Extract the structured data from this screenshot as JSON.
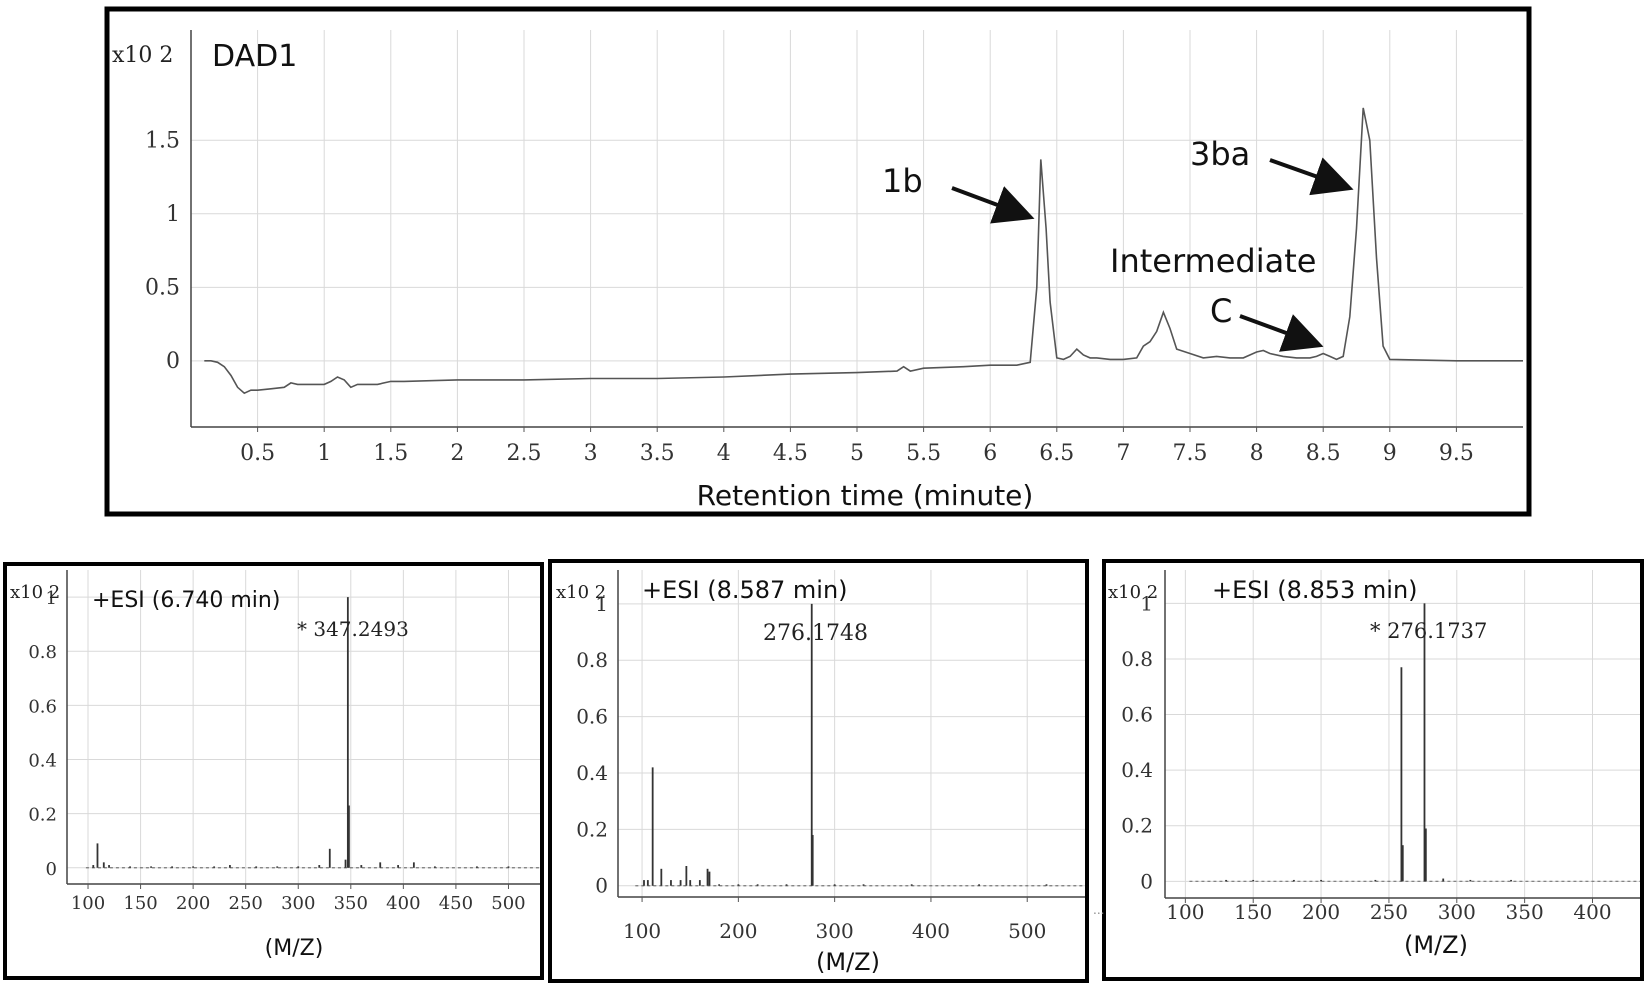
{
  "chart_data": [
    {
      "type": "line",
      "title": "DAD1",
      "xlabel": "Retention time (minute)",
      "ylabel": "",
      "y_multiplier": "x10 2",
      "xlim": [
        0,
        10
      ],
      "ylim": [
        -0.45,
        2.25
      ],
      "xticks": [
        "0.5",
        "1",
        "1.5",
        "2",
        "2.5",
        "3",
        "3.5",
        "4",
        "4.5",
        "5",
        "5.5",
        "6",
        "6.5",
        "7",
        "7.5",
        "8",
        "8.5",
        "9",
        "9.5"
      ],
      "yticks": [
        "0",
        "0.5",
        "1",
        "1.5"
      ],
      "grid": true,
      "series": [
        {
          "x": [
            0.1,
            0.15,
            0.2,
            0.25,
            0.3,
            0.35,
            0.4,
            0.45,
            0.5,
            0.6,
            0.7,
            0.75,
            0.8,
            0.9,
            1.0,
            1.05,
            1.1,
            1.15,
            1.2,
            1.25,
            1.3,
            1.4,
            1.5,
            1.6,
            2.0,
            2.5,
            3.0,
            3.5,
            4.0,
            4.5,
            5.0,
            5.3,
            5.35,
            5.4,
            5.5,
            5.8,
            6.0,
            6.2,
            6.3,
            6.35,
            6.38,
            6.42,
            6.45,
            6.5,
            6.55,
            6.6,
            6.65,
            6.7,
            6.75,
            6.8,
            6.9,
            7.0,
            7.1,
            7.15,
            7.2,
            7.25,
            7.3,
            7.35,
            7.4,
            7.5,
            7.6,
            7.7,
            7.8,
            7.9,
            8.0,
            8.05,
            8.1,
            8.2,
            8.3,
            8.4,
            8.45,
            8.5,
            8.55,
            8.6,
            8.65,
            8.7,
            8.75,
            8.8,
            8.85,
            8.9,
            8.95,
            9.0,
            9.5,
            10.0
          ],
          "y": [
            0.0,
            0.0,
            -0.01,
            -0.04,
            -0.1,
            -0.18,
            -0.22,
            -0.2,
            -0.2,
            -0.19,
            -0.18,
            -0.15,
            -0.16,
            -0.16,
            -0.16,
            -0.14,
            -0.11,
            -0.13,
            -0.18,
            -0.16,
            -0.16,
            -0.16,
            -0.14,
            -0.14,
            -0.13,
            -0.13,
            -0.12,
            -0.12,
            -0.11,
            -0.09,
            -0.08,
            -0.07,
            -0.04,
            -0.07,
            -0.05,
            -0.04,
            -0.03,
            -0.03,
            -0.01,
            0.5,
            1.37,
            0.9,
            0.4,
            0.02,
            0.01,
            0.03,
            0.08,
            0.04,
            0.02,
            0.02,
            0.01,
            0.01,
            0.02,
            0.1,
            0.13,
            0.2,
            0.33,
            0.22,
            0.08,
            0.05,
            0.02,
            0.03,
            0.02,
            0.02,
            0.06,
            0.07,
            0.05,
            0.03,
            0.02,
            0.02,
            0.03,
            0.05,
            0.03,
            0.01,
            0.03,
            0.3,
            0.9,
            1.72,
            1.5,
            0.7,
            0.1,
            0.01,
            0.0,
            0.0
          ]
        }
      ],
      "annotations": [
        {
          "text": "1b",
          "x": 6.3,
          "y": 1.37
        },
        {
          "text": "3ba",
          "x": 8.75,
          "y": 1.72
        },
        {
          "text": "Intermediate",
          "x": 8.4,
          "y": 0.05
        },
        {
          "text": "C",
          "x": 8.4,
          "y": 0.05
        }
      ]
    },
    {
      "type": "bar",
      "title": "+ESI (6.740 min)",
      "xlabel": "(M/Z)",
      "ylabel": "",
      "y_multiplier": "x10 2",
      "xlim": [
        80,
        530
      ],
      "ylim": [
        -0.06,
        1.1
      ],
      "xticks": [
        "100",
        "150",
        "200",
        "250",
        "300",
        "350",
        "400",
        "450",
        "500"
      ],
      "yticks": [
        "0",
        "0.2",
        "0.4",
        "0.6",
        "0.8",
        "1"
      ],
      "grid": true,
      "peak_label": "* 347.2493",
      "x": [
        105,
        109,
        115,
        120,
        140,
        160,
        180,
        200,
        220,
        235,
        260,
        280,
        300,
        320,
        330,
        345,
        347.2,
        348.2,
        360,
        378,
        395,
        410,
        430,
        470,
        500
      ],
      "values": [
        0.01,
        0.09,
        0.02,
        0.01,
        0.005,
        0.005,
        0.005,
        0.005,
        0.005,
        0.01,
        0.005,
        0.005,
        0.005,
        0.01,
        0.07,
        0.03,
        1.0,
        0.23,
        0.01,
        0.02,
        0.01,
        0.02,
        0.005,
        0.005,
        0.005
      ]
    },
    {
      "type": "bar",
      "title": "+ESI (8.587 min)",
      "xlabel": "(M/Z)",
      "ylabel": "",
      "y_multiplier": "x10 2",
      "xlim": [
        75,
        560
      ],
      "ylim": [
        -0.04,
        1.12
      ],
      "xticks": [
        "100",
        "200",
        "300",
        "400",
        "500"
      ],
      "yticks": [
        "0",
        "0.2",
        "0.4",
        "0.6",
        "0.8",
        "1"
      ],
      "grid": true,
      "peak_label": "276.1748",
      "x": [
        102,
        106,
        111,
        120,
        130,
        140,
        146,
        150,
        160,
        168,
        170,
        180,
        200,
        220,
        250,
        276.2,
        277.2,
        300,
        330,
        380,
        450,
        520
      ],
      "values": [
        0.02,
        0.02,
        0.42,
        0.06,
        0.02,
        0.02,
        0.07,
        0.02,
        0.02,
        0.06,
        0.05,
        0.005,
        0.005,
        0.005,
        0.005,
        1.0,
        0.18,
        0.005,
        0.005,
        0.005,
        0.005,
        0.005
      ],
      "axis_note": "..."
    },
    {
      "type": "bar",
      "title": "+ESI (8.853 min)",
      "xlabel": "(M/Z)",
      "ylabel": "",
      "y_multiplier": "x10 2",
      "xlim": [
        85,
        435
      ],
      "ylim": [
        -0.06,
        1.12
      ],
      "xticks": [
        "100",
        "150",
        "200",
        "250",
        "300",
        "350",
        "400"
      ],
      "yticks": [
        "0",
        "0.2",
        "0.4",
        "0.6",
        "0.8",
        "1"
      ],
      "grid": true,
      "peak_label": "* 276.1737",
      "x": [
        130,
        150,
        180,
        200,
        240,
        259.2,
        260.2,
        276.2,
        277.2,
        290,
        310,
        340
      ],
      "values": [
        0.005,
        0.005,
        0.005,
        0.005,
        0.005,
        0.77,
        0.13,
        1.0,
        0.19,
        0.01,
        0.005,
        0.005
      ]
    }
  ]
}
